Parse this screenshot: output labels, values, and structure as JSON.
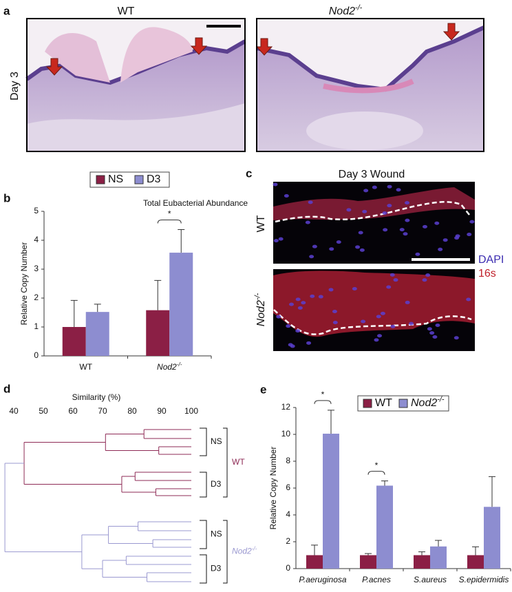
{
  "panel_a": {
    "label": "a",
    "columns": [
      "WT",
      {
        "base": "Nod2",
        "sup": "-/-"
      }
    ],
    "row": "Day 3"
  },
  "panel_c": {
    "label": "c",
    "title": "Day 3 Wound",
    "rows": [
      "WT",
      {
        "base": "Nod2",
        "sup": "-/-"
      }
    ],
    "stains": [
      "DAPI",
      "16s"
    ]
  },
  "chart_data": [
    {
      "type": "bar",
      "panel": "b",
      "title": "Total Eubacterial Abundance",
      "y_label": "Relative Copy Number",
      "categories": [
        "WT",
        {
          "base": "Nod2",
          "sup": "-/-"
        }
      ],
      "series": [
        {
          "name": "NS",
          "color": "#8b1f45",
          "values": [
            1.0,
            1.58
          ],
          "errors": [
            0.92,
            1.03
          ]
        },
        {
          "name": "D3",
          "color": "#8d8dd0",
          "values": [
            1.52,
            3.57
          ],
          "errors": [
            0.27,
            0.8
          ]
        }
      ],
      "ylim": [
        0,
        5
      ],
      "yticks": [
        0,
        1,
        2,
        3,
        4,
        5
      ],
      "annotations": [
        "*"
      ]
    },
    {
      "type": "dendrogram",
      "panel": "d",
      "x_label": "Similarity (%)",
      "xlim": [
        40,
        100
      ],
      "xticks": [
        40,
        50,
        60,
        70,
        80,
        90,
        100
      ],
      "groups": [
        {
          "name": "WT",
          "color": "#8e2a55",
          "subgroups": [
            "NS",
            "D3"
          ]
        },
        {
          "name": {
            "base": "Nod2",
            "sup": "-/-"
          },
          "color": "#9a98d0",
          "subgroups": [
            "NS",
            "D3"
          ]
        }
      ],
      "tree": {
        "similarity": 37,
        "color": "#9a98d0",
        "children": [
          {
            "similarity": 43.5,
            "color": "#8e2a55",
            "children": [
              {
                "similarity": 71,
                "children": [
                  {
                    "similarity": 84,
                    "children": [
                      {
                        "similarity": 100
                      },
                      {
                        "similarity": 100
                      }
                    ]
                  },
                  {
                    "similarity": 89,
                    "children": [
                      {
                        "similarity": 100
                      },
                      {
                        "similarity": 100
                      }
                    ]
                  }
                ]
              },
              {
                "similarity": 76.5,
                "children": [
                  {
                    "similarity": 81,
                    "children": [
                      {
                        "similarity": 100
                      },
                      {
                        "similarity": 100
                      }
                    ]
                  },
                  {
                    "similarity": 88,
                    "children": [
                      {
                        "similarity": 100
                      },
                      {
                        "similarity": 100
                      }
                    ]
                  }
                ]
              }
            ]
          },
          {
            "similarity": 63,
            "color": "#9a98d0",
            "children": [
              {
                "similarity": 72,
                "children": [
                  {
                    "similarity": 82,
                    "children": [
                      {
                        "similarity": 100
                      },
                      {
                        "similarity": 100
                      }
                    ]
                  },
                  {
                    "similarity": 87,
                    "children": [
                      {
                        "similarity": 100
                      },
                      {
                        "similarity": 100
                      }
                    ]
                  }
                ]
              },
              {
                "similarity": 70,
                "children": [
                  {
                    "similarity": 78,
                    "children": [
                      {
                        "similarity": 100
                      },
                      {
                        "similarity": 100
                      }
                    ]
                  },
                  {
                    "similarity": 85,
                    "children": [
                      {
                        "similarity": 100
                      },
                      {
                        "similarity": 100
                      }
                    ]
                  }
                ]
              }
            ]
          }
        ]
      }
    },
    {
      "type": "bar",
      "panel": "e",
      "y_label": "Relative Copy Number",
      "categories": [
        "P.aeruginosa",
        "P.acnes",
        "S.aureus",
        "S.epidermidis"
      ],
      "series": [
        {
          "name": "WT",
          "color": "#8b1f45",
          "values": [
            1.0,
            1.0,
            1.0,
            1.0
          ],
          "errors": [
            0.75,
            0.12,
            0.25,
            0.62
          ]
        },
        {
          "name": {
            "base": "Nod2",
            "sup": "-/-"
          },
          "color": "#8d8dd0",
          "values": [
            10.05,
            6.18,
            1.65,
            4.6
          ],
          "errors": [
            1.75,
            0.35,
            0.45,
            2.25
          ]
        }
      ],
      "ylim": [
        0,
        12
      ],
      "yticks": [
        0,
        2,
        4,
        6,
        8,
        10,
        12
      ],
      "annotations": [
        "*",
        "*"
      ]
    }
  ]
}
